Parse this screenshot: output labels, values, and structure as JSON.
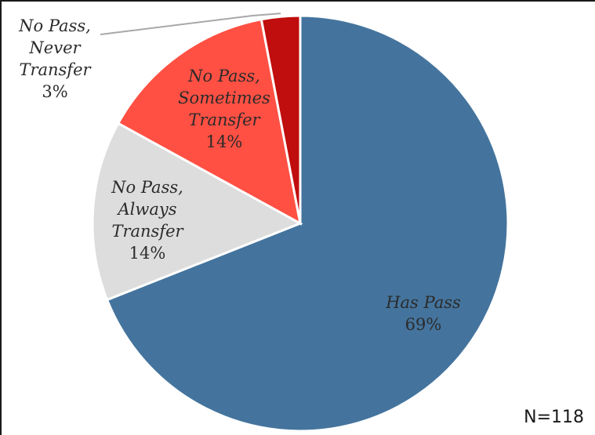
{
  "chart_data": {
    "type": "pie",
    "slices": [
      {
        "label_lines": [
          "Has Pass",
          "69%"
        ],
        "value": 69,
        "color": "#44749D"
      },
      {
        "label_lines": [
          "No Pass,",
          "Always",
          "Transfer",
          "14%"
        ],
        "value": 14,
        "color": "#DDDDDD"
      },
      {
        "label_lines": [
          "No Pass,",
          "Sometimes",
          "Transfer",
          "14%"
        ],
        "value": 14,
        "color": "#FF5043"
      },
      {
        "label_lines": [
          "No Pass,",
          "Never",
          "Transfer",
          "3%"
        ],
        "value": 3,
        "color": "#C00D0D"
      }
    ],
    "note": "N=118",
    "legend": "none"
  }
}
